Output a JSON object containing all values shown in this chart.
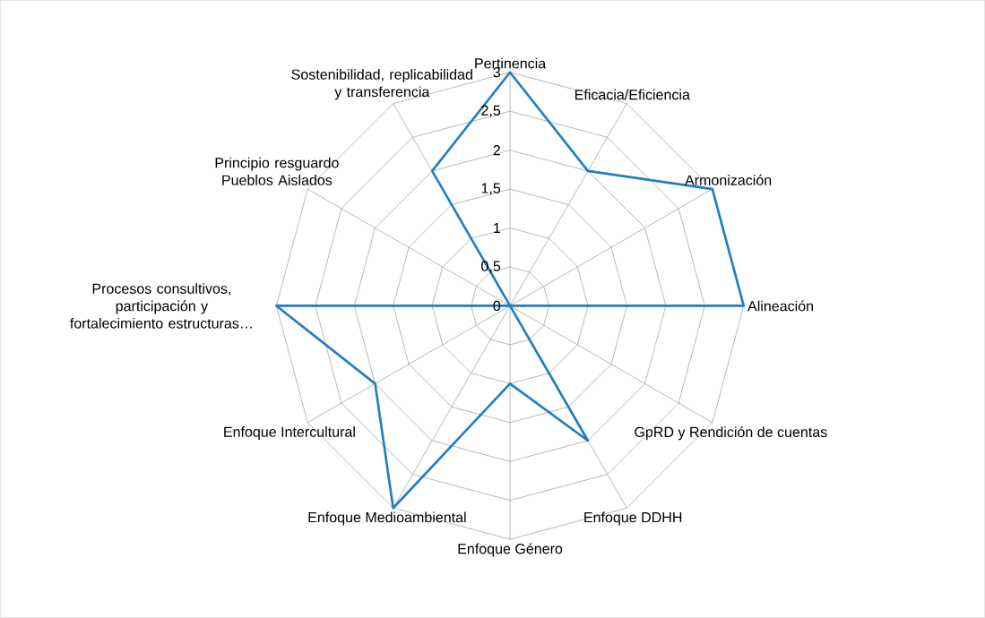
{
  "chart_data": {
    "type": "radar",
    "categories": [
      "Pertinencia",
      "Eficacia/Eficiencia",
      "Armonización",
      "Alineación",
      "GpRD y Rendición de cuentas",
      "Enfoque DDHH",
      "Enfoque Género",
      "Enfoque Medioambiental",
      "Enfoque Intercultural",
      "Procesos consultivos, participación y fortalecimiento estructuras…",
      "Principio resguardo Pueblos Aislados",
      "Sostenibilidad, replicabilidad y transferencia"
    ],
    "series": [
      {
        "color": "#1f7fc4",
        "values": [
          3,
          2,
          3,
          3,
          0,
          2,
          1,
          3,
          2,
          3,
          0,
          2
        ]
      }
    ],
    "ylim": [
      0,
      3
    ],
    "yticks": [
      0,
      {
        "value": 0.5,
        "label": "0,5"
      },
      1,
      {
        "value": 1.5,
        "label": "1,5"
      },
      2,
      {
        "value": 2.5,
        "label": "2,5"
      },
      3
    ],
    "grid": true,
    "marker": "none",
    "line_style": "solid"
  }
}
